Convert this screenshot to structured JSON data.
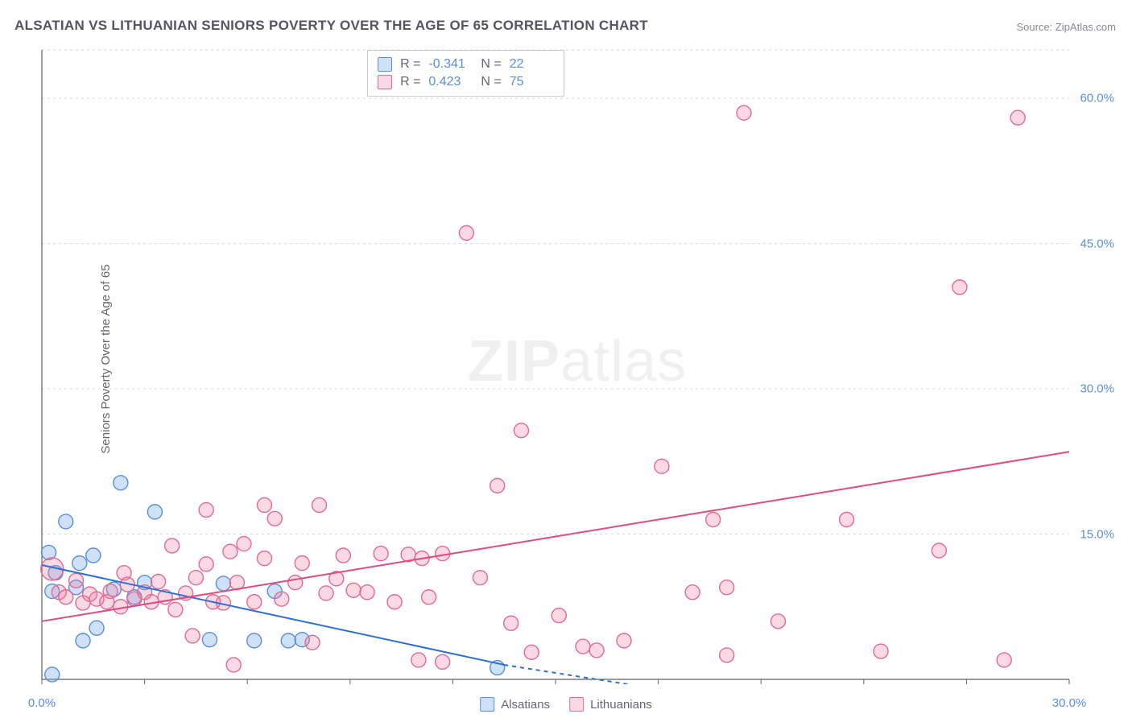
{
  "title": "ALSATIAN VS LITHUANIAN SENIORS POVERTY OVER THE AGE OF 65 CORRELATION CHART",
  "source_label": "Source: ",
  "source_name": "ZipAtlas.com",
  "ylabel": "Seniors Poverty Over the Age of 65",
  "watermark_bold": "ZIP",
  "watermark_rest": "atlas",
  "chart": {
    "type": "scatter",
    "xlim": [
      0,
      30
    ],
    "ylim": [
      0,
      65
    ],
    "xtick_labels": [
      {
        "v": 0.0,
        "t": "0.0%"
      },
      {
        "v": 30.0,
        "t": "30.0%"
      }
    ],
    "xtick_positions": [
      0,
      3,
      6,
      9,
      12,
      15,
      18,
      21,
      24,
      27,
      30
    ],
    "ytick_labels": [
      {
        "v": 15.0,
        "t": "15.0%"
      },
      {
        "v": 30.0,
        "t": "30.0%"
      },
      {
        "v": 45.0,
        "t": "45.0%"
      },
      {
        "v": 60.0,
        "t": "60.0%"
      }
    ],
    "grid_y": [
      15,
      30,
      45,
      60,
      65
    ],
    "grid_color": "#d6d6da",
    "axis_color": "#5f5f66",
    "background": "#ffffff",
    "series": [
      {
        "name": "Alsatians",
        "fill": "rgba(118,169,231,0.35)",
        "stroke": "#5a8fd6",
        "trend_color": "#2a6fd6",
        "trend": {
          "x1": 0,
          "y1": 11.8,
          "x2": 13.5,
          "y2": 1.5
        },
        "trend_dash": {
          "x1": 13.5,
          "y1": 1.5,
          "x2": 18.0,
          "y2": -1.0
        },
        "R": "-0.341",
        "N": "22",
        "points": [
          {
            "x": 0.2,
            "y": 13.1
          },
          {
            "x": 0.3,
            "y": 9.1
          },
          {
            "x": 0.4,
            "y": 11.0
          },
          {
            "x": 0.3,
            "y": 0.5
          },
          {
            "x": 0.7,
            "y": 16.3
          },
          {
            "x": 1.0,
            "y": 9.5
          },
          {
            "x": 1.1,
            "y": 12.0
          },
          {
            "x": 1.2,
            "y": 4.0
          },
          {
            "x": 1.5,
            "y": 12.8
          },
          {
            "x": 1.6,
            "y": 5.3
          },
          {
            "x": 2.1,
            "y": 9.3
          },
          {
            "x": 2.3,
            "y": 20.3
          },
          {
            "x": 2.7,
            "y": 8.5
          },
          {
            "x": 3.0,
            "y": 10.0
          },
          {
            "x": 3.3,
            "y": 17.3
          },
          {
            "x": 4.9,
            "y": 4.1
          },
          {
            "x": 5.3,
            "y": 9.9
          },
          {
            "x": 6.2,
            "y": 4.0
          },
          {
            "x": 6.8,
            "y": 9.1
          },
          {
            "x": 7.2,
            "y": 4.0
          },
          {
            "x": 7.6,
            "y": 4.1
          },
          {
            "x": 13.3,
            "y": 1.2
          }
        ]
      },
      {
        "name": "Lithuanians",
        "fill": "rgba(236,120,156,0.28)",
        "stroke": "#e06a92",
        "trend_color": "#e14b7d",
        "trend": {
          "x1": 0,
          "y1": 6.0,
          "x2": 30,
          "y2": 23.5
        },
        "R": "0.423",
        "N": "75",
        "points": [
          {
            "x": 0.3,
            "y": 11.4,
            "r": 14
          },
          {
            "x": 0.5,
            "y": 9.0
          },
          {
            "x": 0.7,
            "y": 8.5
          },
          {
            "x": 1.0,
            "y": 10.2
          },
          {
            "x": 1.2,
            "y": 7.9
          },
          {
            "x": 1.4,
            "y": 8.8
          },
          {
            "x": 1.6,
            "y": 8.3
          },
          {
            "x": 1.9,
            "y": 8.0
          },
          {
            "x": 2.0,
            "y": 9.1
          },
          {
            "x": 2.3,
            "y": 7.5
          },
          {
            "x": 2.5,
            "y": 9.8
          },
          {
            "x": 2.7,
            "y": 8.3
          },
          {
            "x": 2.4,
            "y": 11.0
          },
          {
            "x": 3.0,
            "y": 9.0
          },
          {
            "x": 3.2,
            "y": 8.0
          },
          {
            "x": 3.4,
            "y": 10.1
          },
          {
            "x": 3.6,
            "y": 8.5
          },
          {
            "x": 3.8,
            "y": 13.8
          },
          {
            "x": 3.9,
            "y": 7.2
          },
          {
            "x": 4.2,
            "y": 8.9
          },
          {
            "x": 4.4,
            "y": 4.5
          },
          {
            "x": 4.5,
            "y": 10.5
          },
          {
            "x": 4.8,
            "y": 11.9
          },
          {
            "x": 5.0,
            "y": 8.0
          },
          {
            "x": 4.8,
            "y": 17.5
          },
          {
            "x": 5.3,
            "y": 7.9
          },
          {
            "x": 5.5,
            "y": 13.2
          },
          {
            "x": 5.7,
            "y": 10.0
          },
          {
            "x": 5.6,
            "y": 1.5
          },
          {
            "x": 5.9,
            "y": 14.0
          },
          {
            "x": 6.2,
            "y": 8.0
          },
          {
            "x": 6.5,
            "y": 12.5
          },
          {
            "x": 6.5,
            "y": 18.0
          },
          {
            "x": 6.8,
            "y": 16.6
          },
          {
            "x": 7.0,
            "y": 8.3
          },
          {
            "x": 7.4,
            "y": 10.0
          },
          {
            "x": 7.6,
            "y": 12.0
          },
          {
            "x": 7.9,
            "y": 3.8
          },
          {
            "x": 8.1,
            "y": 18.0
          },
          {
            "x": 8.3,
            "y": 8.9
          },
          {
            "x": 8.6,
            "y": 10.4
          },
          {
            "x": 8.8,
            "y": 12.8
          },
          {
            "x": 9.1,
            "y": 9.2
          },
          {
            "x": 9.5,
            "y": 9.0
          },
          {
            "x": 9.9,
            "y": 13.0
          },
          {
            "x": 10.3,
            "y": 8.0
          },
          {
            "x": 10.7,
            "y": 12.9
          },
          {
            "x": 11.1,
            "y": 12.5
          },
          {
            "x": 11.3,
            "y": 8.5
          },
          {
            "x": 11.0,
            "y": 2.0
          },
          {
            "x": 11.7,
            "y": 13.0
          },
          {
            "x": 11.7,
            "y": 1.8
          },
          {
            "x": 12.4,
            "y": 46.1
          },
          {
            "x": 12.8,
            "y": 10.5
          },
          {
            "x": 13.3,
            "y": 20.0
          },
          {
            "x": 13.7,
            "y": 5.8
          },
          {
            "x": 14.0,
            "y": 25.7
          },
          {
            "x": 14.3,
            "y": 2.8
          },
          {
            "x": 15.1,
            "y": 6.6
          },
          {
            "x": 15.8,
            "y": 3.4
          },
          {
            "x": 16.2,
            "y": 3.0
          },
          {
            "x": 17.0,
            "y": 4.0
          },
          {
            "x": 18.1,
            "y": 22.0
          },
          {
            "x": 19.0,
            "y": 9.0
          },
          {
            "x": 19.6,
            "y": 16.5
          },
          {
            "x": 20.0,
            "y": 9.5
          },
          {
            "x": 20.0,
            "y": 2.5
          },
          {
            "x": 20.5,
            "y": 58.5
          },
          {
            "x": 21.5,
            "y": 6.0
          },
          {
            "x": 23.5,
            "y": 16.5
          },
          {
            "x": 24.5,
            "y": 2.9
          },
          {
            "x": 26.2,
            "y": 13.3
          },
          {
            "x": 26.8,
            "y": 40.5
          },
          {
            "x": 28.5,
            "y": 58.0
          },
          {
            "x": 28.1,
            "y": 2.0
          }
        ]
      }
    ],
    "point_radius_default": 9,
    "point_stroke_width": 1.4,
    "trend_width": 2.0
  },
  "bottom_legend": [
    {
      "label": "Alsatians",
      "fill": "rgba(118,169,231,0.35)",
      "stroke": "#5a8fd6"
    },
    {
      "label": "Lithuanians",
      "fill": "rgba(236,120,156,0.28)",
      "stroke": "#e06a92"
    }
  ],
  "top_legend": {
    "R_label": "R =",
    "N_label": "N ="
  }
}
